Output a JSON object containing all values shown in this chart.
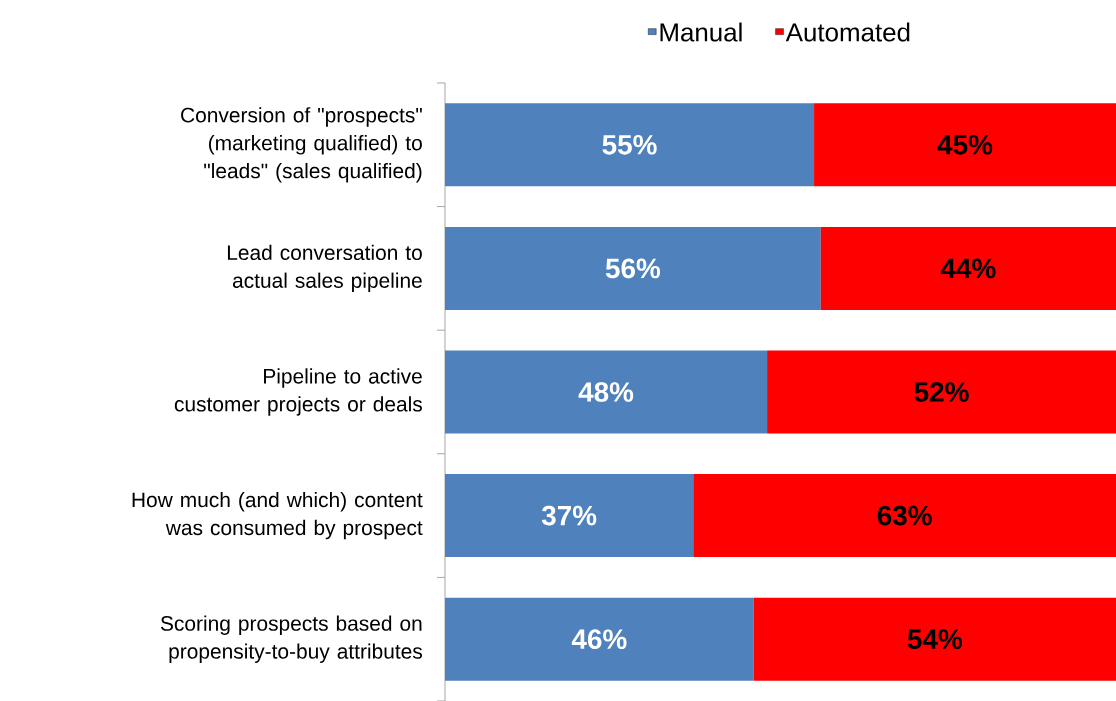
{
  "chart_data": {
    "type": "bar",
    "orientation": "horizontal",
    "stacked": true,
    "legend": "top",
    "categories": [
      "Conversion of \"prospects\" (marketing qualified) to \"leads\" (sales qualified)",
      "Lead conversation to actual sales pipeline",
      "Pipeline to active customer projects or deals",
      "How much (and which) content was consumed by prospect",
      "Scoring prospects based on propensity-to-buy attributes"
    ],
    "series": [
      {
        "name": "Manual",
        "color": "#4f81bd",
        "values": [
          55,
          56,
          48,
          37,
          46
        ],
        "value_labels": [
          "55%",
          "56%",
          "48%",
          "37%",
          "46%"
        ]
      },
      {
        "name": "Automated",
        "color": "#ff0000",
        "values": [
          45,
          44,
          52,
          63,
          54
        ],
        "value_labels": [
          "45%",
          "44%",
          "52%",
          "63%",
          "54%"
        ]
      }
    ]
  }
}
